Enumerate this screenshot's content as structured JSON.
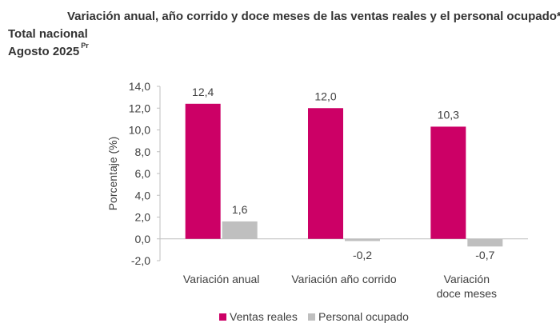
{
  "header": {
    "title": "Variación anual, año corrido y doce meses de las ventas reales y el personal ocupado*",
    "scope": "Total nacional",
    "period": "Agosto 2025",
    "period_mark": "Pr"
  },
  "chart_data": {
    "type": "bar",
    "title": "Variación anual, año corrido y doce meses de las ventas reales y el personal ocupado*",
    "xlabel": "",
    "ylabel": "Porcentaje (%)",
    "ylim": [
      -2.0,
      14.0
    ],
    "yticks": [
      -2.0,
      0.0,
      2.0,
      4.0,
      6.0,
      8.0,
      10.0,
      12.0,
      14.0
    ],
    "ytick_labels": [
      "-2,0",
      "0,0",
      "2,0",
      "4,0",
      "6,0",
      "8,0",
      "10,0",
      "12,0",
      "14,0"
    ],
    "grid": false,
    "legend_position": "bottom-center",
    "categories": [
      [
        "Variación anual"
      ],
      [
        "Variación año corrido"
      ],
      [
        "Variación",
        "doce meses"
      ]
    ],
    "series": [
      {
        "name": "Ventas reales",
        "color": "#cc0066",
        "values": [
          12.4,
          12.0,
          10.3
        ],
        "labels": [
          "12,4",
          "12,0",
          "10,3"
        ]
      },
      {
        "name": "Personal ocupado",
        "color": "#bfbfbf",
        "values": [
          1.6,
          -0.2,
          -0.7
        ],
        "labels": [
          "1,6",
          "-0,2",
          "-0,7"
        ]
      }
    ]
  }
}
